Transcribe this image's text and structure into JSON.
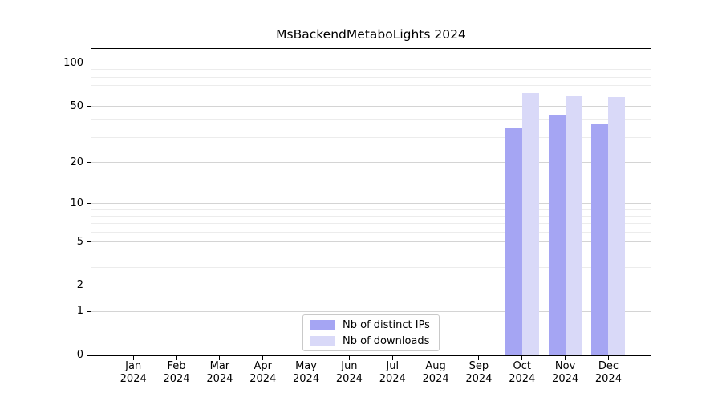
{
  "chart_data": {
    "type": "bar",
    "title": "MsBackendMetaboLights 2024",
    "categories": [
      "Jan",
      "Feb",
      "Mar",
      "Apr",
      "May",
      "Jun",
      "Jul",
      "Aug",
      "Sep",
      "Oct",
      "Nov",
      "Dec"
    ],
    "x_year_label": "2024",
    "series": [
      {
        "name": "Nb of distinct IPs",
        "color": "#a5a5f3",
        "values": [
          null,
          null,
          null,
          null,
          null,
          null,
          null,
          null,
          null,
          35,
          43,
          38
        ]
      },
      {
        "name": "Nb of downloads",
        "color": "#d9d9f8",
        "values": [
          null,
          null,
          null,
          null,
          null,
          null,
          null,
          null,
          null,
          62,
          59,
          58
        ]
      }
    ],
    "yscale": "log1p",
    "ylim": [
      0,
      127
    ],
    "yticks": [
      100,
      50,
      20,
      10,
      5,
      2,
      1,
      0
    ],
    "yticks_minor": [
      3,
      4,
      6,
      7,
      8,
      9,
      30,
      40,
      60,
      70,
      80,
      90
    ],
    "grid": true,
    "legend": {
      "position": "lower center"
    },
    "colors": {
      "spine": "#000000",
      "grid_major": "#d4d4d4",
      "grid_minor": "#ececec",
      "background": "#ffffff"
    }
  }
}
